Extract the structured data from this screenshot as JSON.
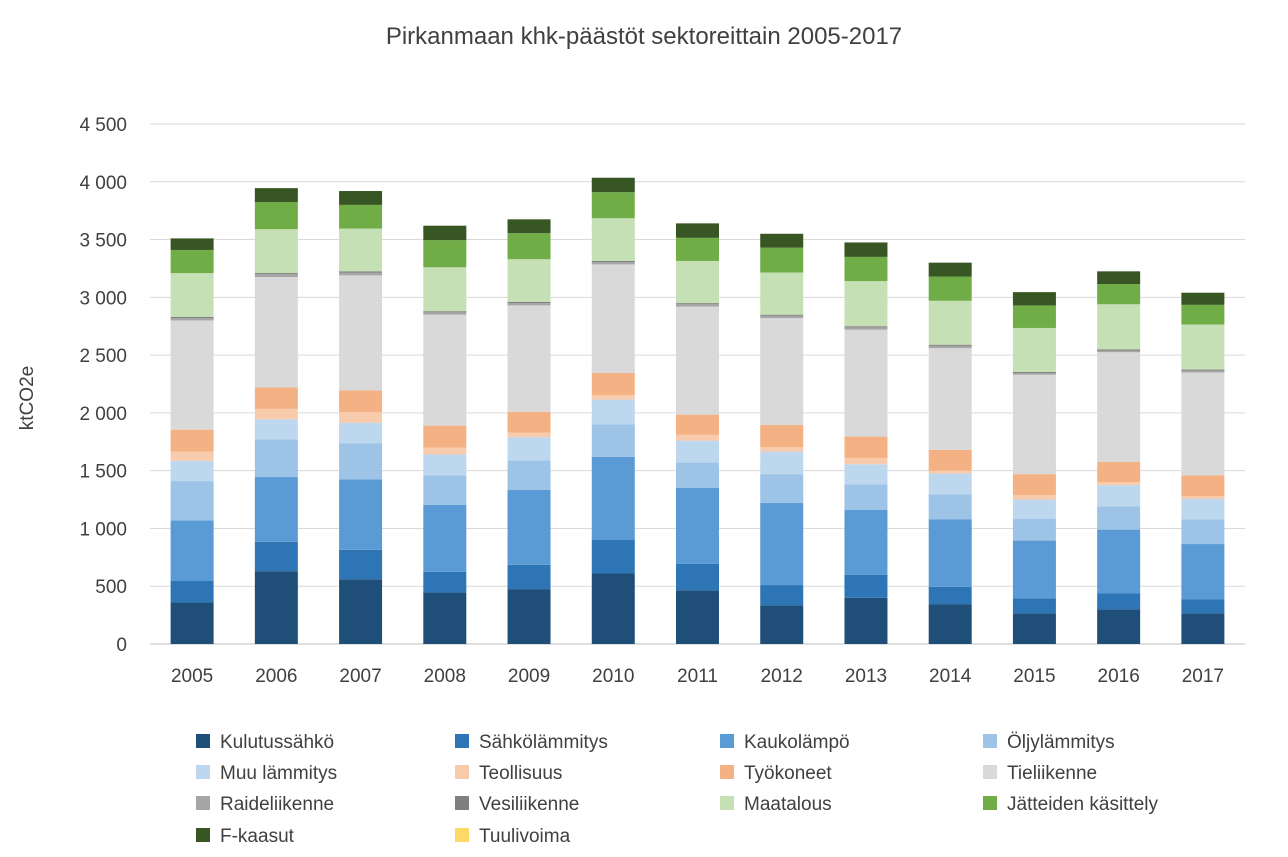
{
  "chart_data": {
    "type": "bar",
    "stacked": true,
    "title": "Pirkanmaan khk-päästöt sektoreittain 2005-2017",
    "ylabel": "ktCO2e",
    "xlabel": "",
    "ylim": [
      0,
      4500
    ],
    "y_ticks": [
      0,
      500,
      1000,
      1500,
      2000,
      2500,
      3000,
      3500,
      4000,
      4500
    ],
    "y_tick_labels": [
      "0",
      "500",
      "1 000",
      "1 500",
      "2 000",
      "2 500",
      "3 000",
      "3 500",
      "4 000",
      "4 500"
    ],
    "grid": true,
    "legend_position": "bottom",
    "categories": [
      "2005",
      "2006",
      "2007",
      "2008",
      "2009",
      "2010",
      "2011",
      "2012",
      "2013",
      "2014",
      "2015",
      "2016",
      "2017"
    ],
    "series": [
      {
        "name": "Kulutussähkö",
        "color": "#1f4e79",
        "values": [
          360,
          630,
          560,
          445,
          475,
          610,
          465,
          335,
          400,
          345,
          265,
          300,
          265
        ]
      },
      {
        "name": "Sähkölämmitys",
        "color": "#2e75b6",
        "values": [
          185,
          255,
          255,
          180,
          210,
          290,
          230,
          175,
          200,
          150,
          130,
          140,
          120
        ]
      },
      {
        "name": "Kaukolämpö",
        "color": "#5b9bd5",
        "values": [
          525,
          560,
          610,
          580,
          650,
          720,
          655,
          710,
          560,
          585,
          500,
          550,
          480
        ]
      },
      {
        "name": "Öljylämmitys",
        "color": "#9dc3e6",
        "values": [
          340,
          325,
          310,
          255,
          255,
          280,
          220,
          250,
          220,
          215,
          190,
          200,
          215
        ]
      },
      {
        "name": "Muu lämmitys",
        "color": "#bdd7ee",
        "values": [
          175,
          175,
          180,
          180,
          200,
          215,
          190,
          195,
          175,
          180,
          165,
          185,
          175
        ]
      },
      {
        "name": "Teollisuus",
        "color": "#f8cbad",
        "values": [
          80,
          90,
          90,
          60,
          40,
          40,
          50,
          40,
          55,
          25,
          40,
          25,
          25
        ]
      },
      {
        "name": "Työkoneet",
        "color": "#f4b183",
        "values": [
          190,
          185,
          190,
          190,
          180,
          190,
          175,
          190,
          185,
          180,
          180,
          175,
          180
        ]
      },
      {
        "name": "Tieliikenne",
        "color": "#d9d9d9",
        "values": [
          945,
          955,
          995,
          960,
          920,
          940,
          935,
          925,
          925,
          880,
          860,
          950,
          890
        ]
      },
      {
        "name": "Raideliikenne",
        "color": "#a6a6a6",
        "values": [
          20,
          25,
          25,
          20,
          20,
          20,
          20,
          20,
          20,
          20,
          15,
          15,
          15
        ]
      },
      {
        "name": "Vesiliikenne",
        "color": "#7f7f7f",
        "values": [
          10,
          10,
          10,
          10,
          10,
          10,
          10,
          10,
          10,
          10,
          10,
          10,
          10
        ]
      },
      {
        "name": "Maatalous",
        "color": "#c5e0b4",
        "values": [
          380,
          380,
          370,
          380,
          370,
          370,
          365,
          365,
          390,
          380,
          380,
          390,
          390
        ]
      },
      {
        "name": "Jätteiden käsittely",
        "color": "#70ad47",
        "values": [
          200,
          235,
          205,
          235,
          225,
          225,
          200,
          215,
          210,
          210,
          195,
          175,
          170
        ]
      },
      {
        "name": "F-kaasut",
        "color": "#375623",
        "values": [
          100,
          120,
          120,
          125,
          120,
          125,
          125,
          120,
          125,
          120,
          115,
          110,
          105
        ]
      },
      {
        "name": "Tuulivoima",
        "color": "#ffd966",
        "values": [
          0,
          0,
          0,
          0,
          0,
          0,
          0,
          0,
          0,
          0,
          0,
          0,
          0
        ]
      }
    ]
  }
}
